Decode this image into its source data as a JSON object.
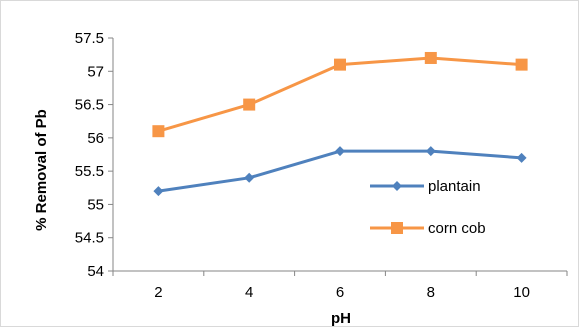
{
  "chart_data": {
    "type": "line",
    "title": "",
    "xlabel": "pH",
    "ylabel": "% Removal of Pb",
    "x": [
      2,
      4,
      6,
      8,
      10
    ],
    "x_tick_labels": [
      "2",
      "4",
      "6",
      "8",
      "10"
    ],
    "ylim": [
      54,
      57.5
    ],
    "y_tick_labels": [
      "54",
      "54.5",
      "55",
      "55.5",
      "56",
      "56.5",
      "57",
      "57.5"
    ],
    "grid": false,
    "legend_position": "right",
    "series": [
      {
        "name": "plantain",
        "values": [
          55.2,
          55.4,
          55.8,
          55.8,
          55.7
        ],
        "color": "#4f81bd",
        "marker": "diamond"
      },
      {
        "name": "corn cob",
        "values": [
          56.1,
          56.5,
          57.1,
          57.2,
          57.1
        ],
        "color": "#f79646",
        "marker": "square"
      }
    ]
  }
}
